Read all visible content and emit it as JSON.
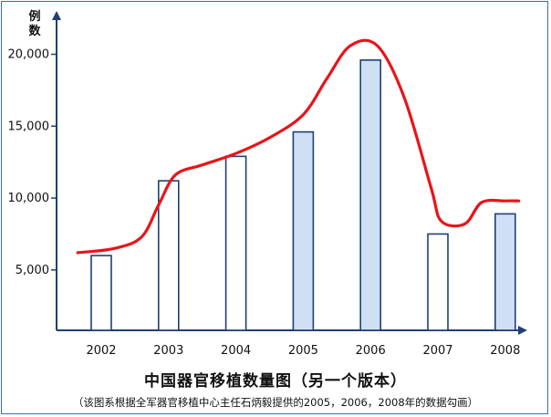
{
  "chart_data": {
    "type": "bar",
    "title": "中国器官移植数量图（另一个版本）",
    "subtitle": "（该图系根据全军器官移植中心主任石炳毅提供的2005，2006，2008年的数据勾画）",
    "ylabel": "例数",
    "xlabel": "",
    "categories": [
      "2002",
      "2003",
      "2004",
      "2005",
      "2006",
      "2007",
      "2008"
    ],
    "values": [
      6000,
      11200,
      12900,
      14600,
      19600,
      7500,
      8900
    ],
    "highlighted": [
      false,
      false,
      false,
      true,
      true,
      false,
      true
    ],
    "yticks": [
      5000,
      10000,
      15000,
      20000
    ],
    "ytick_labels": [
      "5,000",
      "10,000",
      "15,000",
      "20,000"
    ],
    "ylim": [
      800,
      22000
    ],
    "trend_line": {
      "x": [
        2001.65,
        2002.2,
        2002.6,
        2002.85,
        2003.1,
        2003.5,
        2004.0,
        2004.5,
        2005.0,
        2005.35,
        2005.7,
        2006.1,
        2006.5,
        2006.9,
        2007.05,
        2007.4,
        2007.65,
        2008.0,
        2008.2
      ],
      "y": [
        6200,
        6500,
        7300,
        9500,
        11600,
        12300,
        13100,
        14200,
        15800,
        18300,
        20600,
        20600,
        17000,
        10700,
        8400,
        8200,
        9700,
        9800,
        9800
      ]
    },
    "grid": false,
    "legend": "none",
    "colors": {
      "bar_plain_fill": "#ffffff",
      "bar_highlight_fill": "#cfe0f4",
      "bar_stroke": "#1e3f77",
      "trend": "#e8141a",
      "axis": "#1e3f77"
    }
  }
}
